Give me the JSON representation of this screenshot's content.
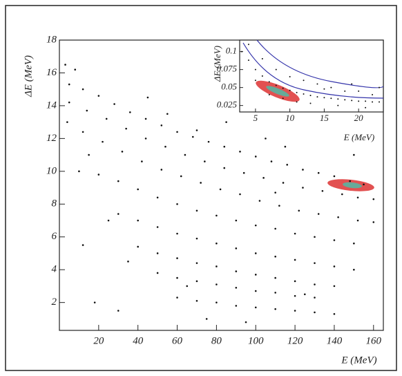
{
  "chart_data": [
    {
      "type": "scatter",
      "xlabel": "E  (MeV)",
      "ylabel": "ΔE  (MeV)",
      "color": "#111",
      "xlim": [
        0,
        165
      ],
      "ylim": [
        0.3,
        18
      ],
      "xticks": [
        20,
        40,
        60,
        80,
        100,
        120,
        140,
        160
      ],
      "yticks": [
        2,
        4,
        6,
        8,
        10,
        12,
        14,
        16,
        18
      ],
      "x": [
        5,
        12,
        20,
        28,
        36,
        44,
        52,
        60,
        68,
        76,
        84,
        92,
        100,
        108,
        116,
        124,
        132,
        140,
        148,
        155,
        5,
        14,
        24,
        34,
        44,
        54,
        64,
        74,
        84,
        94,
        104,
        114,
        124,
        134,
        144,
        152,
        160,
        4,
        12,
        22,
        32,
        42,
        52,
        62,
        72,
        82,
        92,
        102,
        112,
        122,
        132,
        142,
        152,
        160,
        10,
        20,
        30,
        40,
        50,
        60,
        70,
        80,
        90,
        100,
        110,
        120,
        130,
        140,
        150,
        30,
        40,
        50,
        60,
        70,
        80,
        90,
        100,
        110,
        120,
        130,
        140,
        150,
        40,
        50,
        60,
        70,
        80,
        90,
        100,
        110,
        120,
        130,
        140,
        50,
        60,
        70,
        80,
        90,
        100,
        110,
        120,
        130,
        60,
        70,
        80,
        90,
        100,
        110,
        120,
        130,
        140,
        8,
        15,
        25,
        35,
        18,
        45,
        55,
        65,
        75,
        85,
        95,
        105,
        115,
        125,
        3,
        12,
        30,
        70,
        110,
        150
      ],
      "values": [
        15.3,
        15.0,
        14.6,
        14.1,
        13.6,
        13.2,
        12.8,
        12.4,
        12.1,
        11.8,
        11.5,
        11.2,
        10.9,
        10.6,
        10.4,
        10.1,
        9.9,
        9.7,
        9.4,
        9.2,
        14.2,
        13.7,
        13.2,
        12.6,
        12.0,
        11.5,
        11.0,
        10.6,
        10.2,
        9.9,
        9.6,
        9.3,
        9.0,
        8.8,
        8.6,
        8.4,
        8.3,
        13.0,
        12.4,
        11.8,
        11.2,
        10.6,
        10.1,
        9.7,
        9.3,
        8.9,
        8.6,
        8.2,
        7.9,
        7.6,
        7.4,
        7.2,
        7.0,
        6.9,
        10.0,
        9.8,
        9.4,
        8.9,
        8.4,
        8.0,
        7.6,
        7.3,
        7.0,
        6.7,
        6.5,
        6.2,
        6.0,
        5.8,
        5.6,
        7.4,
        7.0,
        6.6,
        6.2,
        5.9,
        5.6,
        5.3,
        5.0,
        4.8,
        4.6,
        4.4,
        4.2,
        4.0,
        5.4,
        5.0,
        4.7,
        4.4,
        4.2,
        3.9,
        3.7,
        3.5,
        3.3,
        3.1,
        3.0,
        3.8,
        3.5,
        3.3,
        3.1,
        2.9,
        2.7,
        2.6,
        2.4,
        2.3,
        2.3,
        2.1,
        2.0,
        1.8,
        1.7,
        1.6,
        1.5,
        1.4,
        1.3,
        16.2,
        11.0,
        7.0,
        4.5,
        2.0,
        14.5,
        13.5,
        3.0,
        1.0,
        13.0,
        0.8,
        12.0,
        11.5,
        2.5,
        16.5,
        5.5,
        1.5,
        12.5,
        8.7,
        11.0
      ]
    },
    {
      "type": "scatter",
      "xlabel": "E  (MeV)",
      "ylabel": "ΔE  (MeV)",
      "color": "#111",
      "xlim": [
        2.7,
        23.6
      ],
      "ylim": [
        0.016,
        0.116
      ],
      "xticks": [
        5,
        10,
        15,
        20
      ],
      "yticks": [
        0.025,
        0.05,
        0.075,
        0.1
      ],
      "x": [
        3,
        4,
        5,
        6,
        7,
        8,
        9,
        10,
        11,
        12,
        13,
        14,
        15,
        16,
        17,
        18,
        19,
        20,
        21,
        22,
        23,
        4,
        6,
        8,
        10,
        12,
        14,
        16,
        18,
        20,
        22,
        5,
        9,
        13,
        17,
        21,
        7,
        11,
        15,
        19,
        23
      ],
      "values": [
        0.1,
        0.088,
        0.075,
        0.066,
        0.058,
        0.053,
        0.049,
        0.046,
        0.043,
        0.041,
        0.039,
        0.037,
        0.036,
        0.035,
        0.034,
        0.033,
        0.032,
        0.031,
        0.031,
        0.03,
        0.03,
        0.11,
        0.09,
        0.075,
        0.065,
        0.06,
        0.055,
        0.05,
        0.045,
        0.045,
        0.04,
        0.06,
        0.035,
        0.028,
        0.025,
        0.022,
        0.04,
        0.03,
        0.048,
        0.055,
        0.05
      ]
    }
  ]
}
